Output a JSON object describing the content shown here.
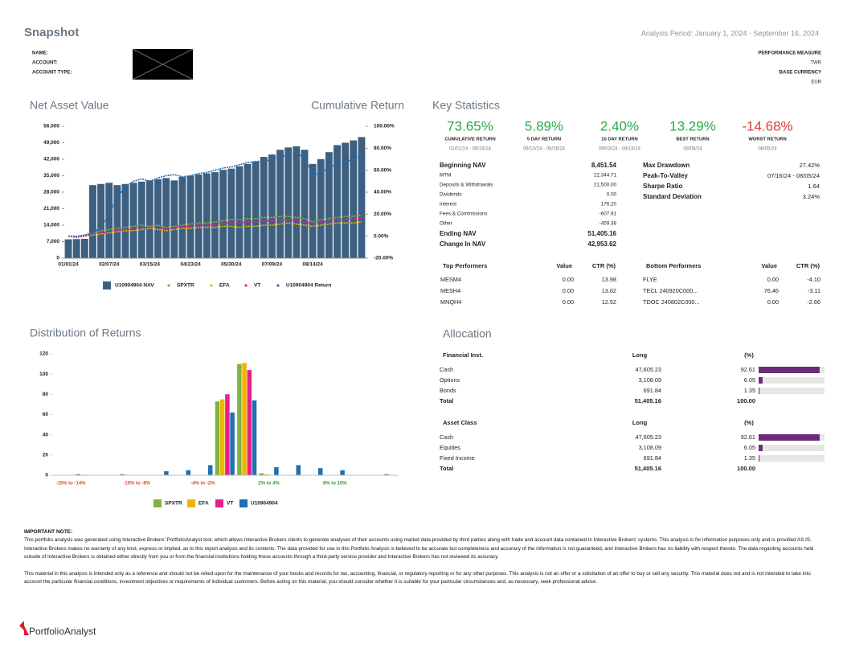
{
  "header": {
    "title": "Snapshot",
    "analysis_period": "Analysis Period: January 1, 2024 - September 16, 2024",
    "fields": [
      "NAME:",
      "ACCOUNT:",
      "ACCOUNT TYPE:"
    ],
    "performance_measure_label": "PERFORMANCE MEASURE",
    "performance_measure": "TWR",
    "base_currency_label": "BASE CURRENCY",
    "base_currency": "EUR"
  },
  "sections": {
    "nav": "Net Asset Value",
    "cumulative": "Cumulative Return",
    "key_statistics": "Key Statistics",
    "distribution": "Distribution of Returns",
    "allocation": "Allocation"
  },
  "chart_data": [
    {
      "type": "bar_line",
      "categories": [
        "01/01/24",
        null,
        null,
        null,
        null,
        "02/07/24",
        null,
        null,
        null,
        null,
        "03/15/24",
        null,
        null,
        null,
        null,
        "04/23/24",
        null,
        null,
        null,
        null,
        "05/30/24",
        null,
        null,
        null,
        null,
        "07/09/24",
        null,
        null,
        null,
        null,
        "08/14/24",
        null,
        null,
        null,
        null,
        null,
        null
      ],
      "ylim": [
        0,
        56000
      ],
      "yticks": [
        0,
        {
          "value": 7000,
          "label": "7,000"
        },
        {
          "value": 14000,
          "label": "14,000"
        },
        {
          "value": 21000,
          "label": "21,000"
        },
        {
          "value": 28000,
          "label": "28,000"
        },
        {
          "value": 35000,
          "label": "35,000"
        },
        {
          "value": 42000,
          "label": "42,000"
        },
        {
          "value": 49000,
          "label": "49,000"
        },
        {
          "value": 56000,
          "label": "56,000"
        }
      ],
      "y2lim": [
        -20,
        100
      ],
      "y2ticks": [
        {
          "value": -20,
          "label": "-20.00%"
        },
        {
          "value": 0,
          "label": "0.00%"
        },
        {
          "value": 20,
          "label": "20.00%"
        },
        {
          "value": 40,
          "label": "40.00%"
        },
        {
          "value": 60,
          "label": "60.00%"
        },
        {
          "value": 80,
          "label": "80.00%"
        },
        {
          "value": 100,
          "label": "100.00%"
        }
      ],
      "series": [
        {
          "name": "U10904904 NAV",
          "type": "bar",
          "color": "#3d5f80",
          "values": [
            8000,
            8100,
            8200,
            31000,
            31500,
            32000,
            31000,
            31500,
            32000,
            32500,
            33000,
            33500,
            34000,
            33000,
            34500,
            35000,
            35500,
            36000,
            36500,
            37500,
            38000,
            39000,
            40000,
            41000,
            43000,
            44000,
            46000,
            47000,
            47500,
            46000,
            40000,
            42000,
            45000,
            48000,
            49000,
            50000,
            51400
          ]
        },
        {
          "name": "SPXTR",
          "type": "line",
          "axis": "y2",
          "color": "#7cb342",
          "values": [
            0,
            -1,
            1,
            3,
            5,
            6,
            7,
            8,
            9,
            10,
            9,
            10,
            8,
            9,
            10,
            11,
            12,
            12,
            13,
            14,
            15,
            15,
            16,
            16,
            17,
            17,
            18,
            18,
            17,
            16,
            13,
            15,
            16,
            17,
            18,
            18,
            19
          ]
        },
        {
          "name": "EFA",
          "type": "line",
          "axis": "y2",
          "color": "#f0b400",
          "values": [
            0,
            -1,
            0,
            1,
            2,
            3,
            4,
            5,
            5,
            6,
            7,
            6,
            5,
            6,
            7,
            7,
            8,
            8,
            8,
            9,
            9,
            8,
            9,
            9,
            10,
            10,
            11,
            12,
            11,
            10,
            9,
            10,
            11,
            12,
            12,
            12,
            13
          ]
        },
        {
          "name": "VT",
          "type": "line",
          "axis": "y2",
          "color": "#e91e8c",
          "values": [
            0,
            -1,
            0,
            2,
            3,
            4,
            5,
            6,
            7,
            8,
            8,
            8,
            7,
            8,
            9,
            9,
            10,
            10,
            11,
            12,
            12,
            12,
            13,
            13,
            14,
            14,
            15,
            15,
            14,
            13,
            11,
            12,
            14,
            15,
            15,
            16,
            16
          ]
        },
        {
          "name": "U10904904 Return",
          "type": "line",
          "axis": "y2",
          "color": "#1f6fb2",
          "values": [
            0,
            0,
            1,
            3,
            8,
            20,
            35,
            45,
            50,
            52,
            50,
            53,
            55,
            56,
            54,
            55,
            57,
            58,
            60,
            62,
            63,
            65,
            67,
            68,
            68,
            70,
            72,
            74,
            75,
            72,
            55,
            58,
            62,
            66,
            68,
            70,
            73.65
          ]
        }
      ]
    },
    {
      "type": "bar",
      "categories": [
        "-15% to -14%",
        null,
        null,
        "-10% to -8%",
        null,
        null,
        "-4% to -2%",
        null,
        null,
        "2% to 4%",
        null,
        null,
        "8% to 10%",
        null,
        null
      ],
      "category_colors": [
        "#e8462e",
        null,
        null,
        "#e8462e",
        null,
        null,
        "#e8462e",
        null,
        null,
        "#2e9e3a",
        null,
        null,
        "#2e9e3a",
        null,
        null
      ],
      "ylim": [
        0,
        120
      ],
      "yticks": [
        0,
        20,
        40,
        60,
        80,
        100,
        120
      ],
      "series": [
        {
          "name": "SPXTR",
          "color": "#7cb342",
          "values": [
            0,
            0,
            0,
            0,
            0,
            0,
            0,
            73,
            110,
            2,
            0,
            0,
            0,
            0,
            0
          ]
        },
        {
          "name": "EFA",
          "color": "#f0b400",
          "values": [
            0,
            0,
            0,
            0,
            0,
            0,
            0,
            75,
            111,
            1,
            0,
            0,
            0,
            0,
            0
          ]
        },
        {
          "name": "VT",
          "color": "#e91e8c",
          "values": [
            0,
            0,
            0,
            0,
            0,
            0,
            0,
            80,
            104,
            0,
            0,
            0,
            0,
            0,
            0
          ]
        },
        {
          "name": "U10904904",
          "color": "#1f6fb2",
          "values": [
            1,
            0,
            1,
            0,
            4,
            5,
            10,
            62,
            74,
            8,
            10,
            7,
            5,
            0,
            1
          ]
        }
      ]
    }
  ],
  "key_statistics": {
    "tiles": [
      {
        "value": "73.65%",
        "label": "CUMULATIVE RETURN",
        "period": "01/01/24 - 09/16/24",
        "color": "#2aa84a"
      },
      {
        "value": "5.89%",
        "label": "5 DAY RETURN",
        "period": "09/10/24 - 09/16/24",
        "color": "#2aa84a"
      },
      {
        "value": "2.40%",
        "label": "10 DAY RETURN",
        "period": "09/03/24 - 09/16/24",
        "color": "#2aa84a"
      },
      {
        "value": "13.29%",
        "label": "BEST RETURN",
        "period": "08/08/24",
        "color": "#2aa84a"
      },
      {
        "value": "-14.68%",
        "label": "WORST RETURN",
        "period": "08/05/24",
        "color": "#e03a3a"
      }
    ],
    "nav_rows": [
      {
        "label": "Beginning NAV",
        "value": "8,451.54",
        "bold": true
      },
      {
        "label": "MTM",
        "value": "22,344.71",
        "bold": false
      },
      {
        "label": "Deposits & Withdrawals",
        "value": "21,500.00",
        "bold": false
      },
      {
        "label": "Dividends",
        "value": "0.00",
        "bold": false
      },
      {
        "label": "Interest",
        "value": "176.20",
        "bold": false
      },
      {
        "label": "Fees & Commissions",
        "value": "-607.91",
        "bold": false
      },
      {
        "label": "Other",
        "value": "-459.38",
        "bold": false
      },
      {
        "label": "Ending NAV",
        "value": "51,405.16",
        "bold": true
      },
      {
        "label": "Change In NAV",
        "value": "42,953.62",
        "bold": true
      }
    ],
    "risk_rows": [
      {
        "label": "Max Drawdown",
        "value": "27.42%"
      },
      {
        "label": "Peak-To-Valley",
        "value": "07/16/24 - 08/05/24"
      },
      {
        "label": "Sharpe Ratio",
        "value": "1.64"
      },
      {
        "label": "Standard Deviation",
        "value": "3.24%"
      }
    ]
  },
  "performers": {
    "top": {
      "headers": [
        "Top Performers",
        "Value",
        "CTR (%)"
      ],
      "rows": [
        [
          "MESM4",
          "0.00",
          "13.98"
        ],
        [
          "MESH4",
          "0.00",
          "13.02"
        ],
        [
          "MNQH4",
          "0.00",
          "12.52"
        ]
      ]
    },
    "bottom": {
      "headers": [
        "Bottom Performers",
        "Value",
        "CTR (%)"
      ],
      "rows": [
        [
          "FLYE",
          "0.00",
          "-4.10"
        ],
        [
          "TECL  240920C000...",
          "76.46",
          "-3.11"
        ],
        [
          "TDOC  240802C000...",
          "0.00",
          "-2.66"
        ]
      ]
    }
  },
  "allocation": [
    {
      "headers": [
        "Financial Inst.",
        "Long",
        "(%)"
      ],
      "rows": [
        {
          "label": "Cash",
          "long": "47,605.23",
          "pct": 92.61
        },
        {
          "label": "Options",
          "long": "3,108.09",
          "pct": 6.05
        },
        {
          "label": "Bonds",
          "long": "691.84",
          "pct": 1.35
        }
      ],
      "total": {
        "label": "Total",
        "long": "51,405.16",
        "pct": "100.00"
      }
    },
    {
      "headers": [
        "Asset Class",
        "Long",
        "(%)"
      ],
      "rows": [
        {
          "label": "Cash",
          "long": "47,605.23",
          "pct": 92.61
        },
        {
          "label": "Equities",
          "long": "3,108.09",
          "pct": 6.05
        },
        {
          "label": "Fixed Income",
          "long": "691.84",
          "pct": 1.35
        }
      ],
      "total": {
        "label": "Total",
        "long": "51,405.16",
        "pct": "100.00"
      }
    }
  ],
  "allocation_bar_color": "#6b2d7b",
  "note": {
    "title": "IMPORTANT NOTE:",
    "paragraphs": [
      "This portfolio analysis was generated using Interactive Brokers' PortfolioAnalyst tool, which allows Interactive Brokers clients to generate analyses of their accounts using market data provided by third parties along with trade and account data contained in Interactive Brokers' systems. This analysis is for information purposes only and is provided AS IS. Interactive Brokers makes no warranty of any kind, express or implied, as to this report analysis and its contents. The data provided for use in this Portfolio Analysis is believed to be accurate but completeness and accuracy of the information is not guaranteed, and Interactive Brokers has no liability with respect thereto. The data regarding accounts held outside of Interactive Brokers is obtained either directly from you or from the financial institutions holding those accounts through a third-party service provider and Interactive Brokers has not reviewed its accuracy.",
      "This material in this analysis is intended only as a reference and should not be relied upon for the maintenance of your books and records for tax, accounting, financial, or regulatory reporting or for any other purposes. This analysis is not an offer or a solicitation of an offer to buy or sell any security. This material does not and is not intended to take into account the particular financial conditions, investment objectives or requirements of individual customers. Before acting on this material, you should consider whether it is suitable for your particular circumstances and, as necessary, seek professional advice."
    ]
  },
  "footer": {
    "brand": "PortfolioAnalyst"
  }
}
